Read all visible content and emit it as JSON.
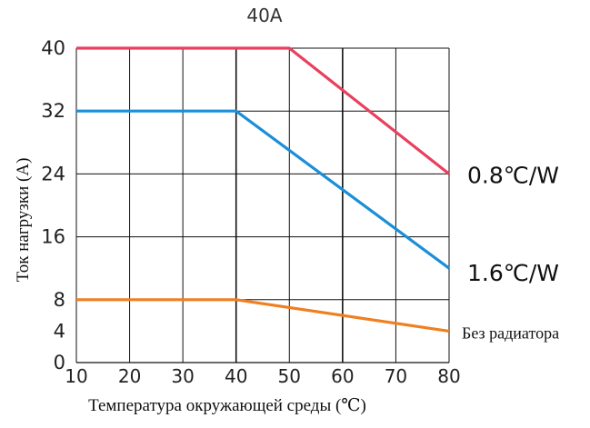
{
  "chart_data": {
    "type": "line",
    "title": "40A",
    "xlabel": "Температура окружающей среды (℃)",
    "ylabel": "Ток нагрузки (A)",
    "xlim": [
      10,
      80
    ],
    "ylim": [
      0,
      40
    ],
    "x_ticks": [
      "10",
      "20",
      "30",
      "40",
      "50",
      "60",
      "70",
      "80"
    ],
    "y_ticks": [
      "0",
      "4",
      "8",
      "16",
      "24",
      "32",
      "40"
    ],
    "grid": true,
    "series": [
      {
        "name": "0.8℃/W",
        "color": "#e8405e",
        "x": [
          10,
          50,
          80
        ],
        "y": [
          40,
          40,
          24
        ]
      },
      {
        "name": "1.6℃/W",
        "color": "#1a8fd8",
        "x": [
          10,
          40,
          80
        ],
        "y": [
          32,
          32,
          12
        ]
      },
      {
        "name": "Без радиатора",
        "color": "#f07f21",
        "x": [
          10,
          40,
          80
        ],
        "y": [
          8,
          8,
          4
        ]
      }
    ]
  }
}
